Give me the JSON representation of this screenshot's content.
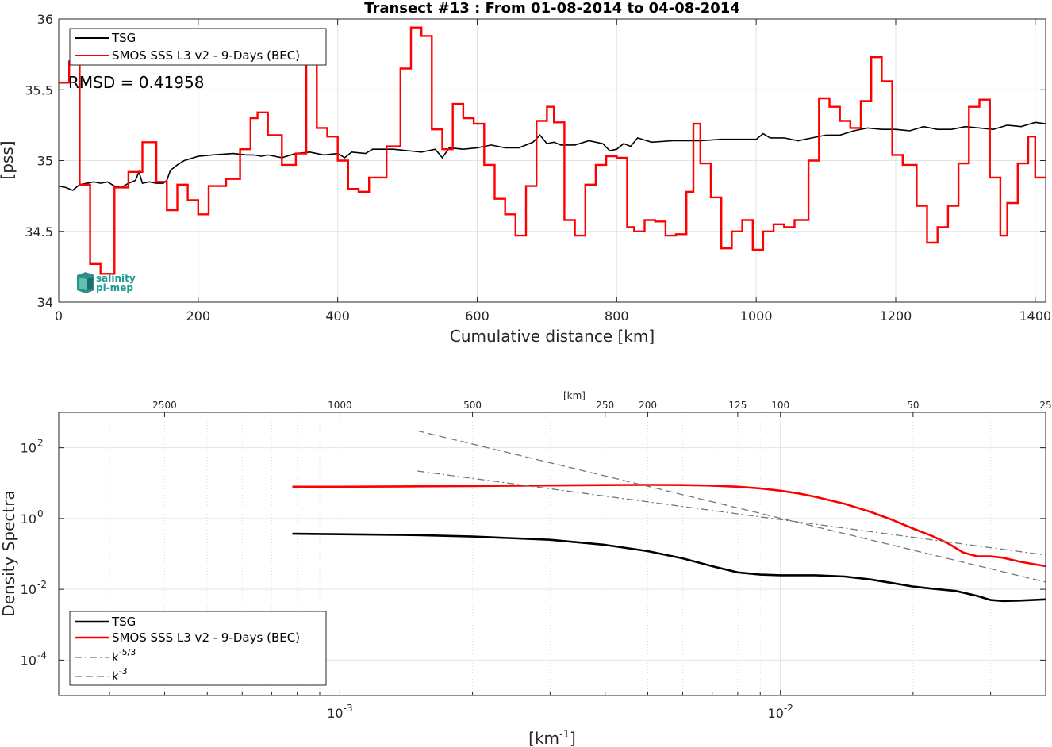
{
  "chart_data": [
    {
      "type": "line",
      "title": "Transect #13 : From 01-08-2014 to 04-08-2014",
      "xlabel": "Cumulative distance [km]",
      "ylabel": "[pss]",
      "xlim": [
        0,
        1415
      ],
      "ylim": [
        34,
        36
      ],
      "xticks": [
        0,
        200,
        400,
        600,
        800,
        1000,
        1200,
        1400
      ],
      "yticks": [
        34,
        34.5,
        35,
        35.5,
        36
      ],
      "xtick_labels": [
        "0",
        "200",
        "400",
        "600",
        "800",
        "1000",
        "1200",
        "1400"
      ],
      "ytick_labels": [
        "34",
        "34.5",
        "35",
        "35.5",
        "36"
      ],
      "grid": true,
      "legend_position": "top-left",
      "annotation": "RMSD = 0.41958",
      "logo": {
        "line1": "salinity",
        "line2": "pi-mep"
      },
      "series": [
        {
          "name": "TSG",
          "color": "#000000",
          "step": false,
          "x": [
            0,
            10,
            20,
            30,
            40,
            50,
            60,
            70,
            80,
            90,
            100,
            110,
            115,
            120,
            130,
            140,
            150,
            155,
            160,
            170,
            180,
            200,
            220,
            250,
            270,
            280,
            290,
            300,
            320,
            340,
            360,
            380,
            400,
            410,
            420,
            440,
            450,
            480,
            500,
            520,
            540,
            550,
            560,
            580,
            600,
            620,
            640,
            660,
            680,
            690,
            700,
            710,
            720,
            740,
            760,
            780,
            790,
            800,
            810,
            820,
            830,
            850,
            880,
            900,
            920,
            950,
            980,
            1000,
            1010,
            1020,
            1040,
            1060,
            1080,
            1100,
            1120,
            1140,
            1160,
            1180,
            1200,
            1220,
            1240,
            1260,
            1280,
            1300,
            1320,
            1340,
            1360,
            1380,
            1400,
            1415
          ],
          "values": [
            34.82,
            34.81,
            34.79,
            34.83,
            34.84,
            34.85,
            34.84,
            34.85,
            34.82,
            34.81,
            34.84,
            34.86,
            34.92,
            34.84,
            34.85,
            34.84,
            34.84,
            34.86,
            34.93,
            34.97,
            35.0,
            35.03,
            35.04,
            35.05,
            35.04,
            35.04,
            35.03,
            35.04,
            35.02,
            35.05,
            35.06,
            35.04,
            35.05,
            35.02,
            35.06,
            35.05,
            35.08,
            35.08,
            35.07,
            35.06,
            35.08,
            35.02,
            35.09,
            35.08,
            35.09,
            35.11,
            35.09,
            35.09,
            35.13,
            35.18,
            35.12,
            35.13,
            35.11,
            35.11,
            35.14,
            35.12,
            35.07,
            35.08,
            35.12,
            35.1,
            35.16,
            35.13,
            35.14,
            35.14,
            35.14,
            35.15,
            35.15,
            35.15,
            35.19,
            35.16,
            35.16,
            35.14,
            35.16,
            35.18,
            35.18,
            35.21,
            35.23,
            35.22,
            35.22,
            35.21,
            35.24,
            35.22,
            35.22,
            35.24,
            35.23,
            35.22,
            35.25,
            35.24,
            35.27,
            35.26
          ]
        },
        {
          "name": "SMOS SSS L3 v2 - 9-Days (BEC)",
          "color": "#ff0000",
          "step": true,
          "x": [
            0,
            15,
            30,
            45,
            60,
            80,
            100,
            120,
            140,
            155,
            170,
            185,
            200,
            215,
            240,
            260,
            275,
            285,
            300,
            320,
            340,
            355,
            370,
            385,
            400,
            415,
            430,
            445,
            470,
            490,
            505,
            520,
            535,
            550,
            565,
            580,
            595,
            610,
            625,
            640,
            655,
            670,
            685,
            700,
            710,
            725,
            740,
            755,
            770,
            785,
            800,
            815,
            825,
            840,
            855,
            870,
            885,
            900,
            910,
            920,
            935,
            950,
            965,
            980,
            995,
            1010,
            1025,
            1040,
            1055,
            1075,
            1090,
            1105,
            1120,
            1135,
            1150,
            1165,
            1180,
            1195,
            1210,
            1230,
            1245,
            1260,
            1275,
            1290,
            1305,
            1320,
            1335,
            1350,
            1360,
            1375,
            1390,
            1400,
            1415
          ],
          "values": [
            35.55,
            35.7,
            34.83,
            34.27,
            34.2,
            34.81,
            34.92,
            35.13,
            34.85,
            34.65,
            34.83,
            34.72,
            34.62,
            34.82,
            34.87,
            35.08,
            35.3,
            35.34,
            35.18,
            34.97,
            35.05,
            35.72,
            35.23,
            35.17,
            35.0,
            34.8,
            34.78,
            34.88,
            35.1,
            35.65,
            35.94,
            35.88,
            35.22,
            35.08,
            35.4,
            35.3,
            35.26,
            34.97,
            34.73,
            34.62,
            34.47,
            34.82,
            35.28,
            35.38,
            35.27,
            34.58,
            34.47,
            34.83,
            34.97,
            35.03,
            35.02,
            34.53,
            34.5,
            34.58,
            34.57,
            34.47,
            34.48,
            34.78,
            35.26,
            34.98,
            34.74,
            34.38,
            34.5,
            34.58,
            34.37,
            34.5,
            34.55,
            34.53,
            34.58,
            35.0,
            35.44,
            35.38,
            35.28,
            35.23,
            35.42,
            35.73,
            35.56,
            35.04,
            34.97,
            34.68,
            34.42,
            34.53,
            34.68,
            34.98,
            35.38,
            35.43,
            34.88,
            34.47,
            34.7,
            34.98,
            35.17,
            34.88,
            34.88
          ]
        }
      ]
    },
    {
      "type": "line",
      "title": "",
      "xlabel": "[km⁻¹]",
      "ylabel": "Density Spectra",
      "xscale": "log",
      "yscale": "log",
      "xlim": [
        0.00023,
        0.04
      ],
      "ylim": [
        1e-05,
        1000
      ],
      "xtick_values": [
        0.001,
        0.01
      ],
      "xtick_labels": [
        {
          "base": "10",
          "exp": "-3"
        },
        {
          "base": "10",
          "exp": "-2"
        }
      ],
      "ytick_values": [
        0.0001,
        0.01,
        1,
        100
      ],
      "ytick_labels": [
        {
          "base": "10",
          "exp": "-4"
        },
        {
          "base": "10",
          "exp": "-2"
        },
        {
          "base": "10",
          "exp": "0"
        },
        {
          "base": "10",
          "exp": "2"
        }
      ],
      "top_axis_label": "[km]",
      "top_axis_values": [
        2500,
        1000,
        500,
        250,
        200,
        125,
        100,
        50,
        25
      ],
      "top_axis_labels": [
        "2500",
        "1000",
        "500",
        "250",
        "200",
        "125",
        "100",
        "50",
        "25"
      ],
      "grid": true,
      "legend_position": "bottom-left",
      "series": [
        {
          "name": "TSG",
          "color": "#000000",
          "style": "solid",
          "x": [
            0.00078,
            0.001,
            0.0015,
            0.002,
            0.003,
            0.004,
            0.005,
            0.006,
            0.007,
            0.008,
            0.009,
            0.01,
            0.011,
            0.012,
            0.014,
            0.016,
            0.018,
            0.02,
            0.022,
            0.025,
            0.028,
            0.03,
            0.032,
            0.035,
            0.04
          ],
          "values": [
            0.37,
            0.36,
            0.34,
            0.31,
            0.25,
            0.18,
            0.12,
            0.075,
            0.045,
            0.03,
            0.026,
            0.025,
            0.025,
            0.025,
            0.023,
            0.019,
            0.015,
            0.012,
            0.0105,
            0.009,
            0.0065,
            0.005,
            0.0047,
            0.0048,
            0.0052
          ]
        },
        {
          "name": "SMOS SSS L3 v2 - 9-Days (BEC)",
          "color": "#ff0000",
          "style": "solid",
          "x": [
            0.00078,
            0.001,
            0.0015,
            0.002,
            0.003,
            0.004,
            0.005,
            0.006,
            0.007,
            0.008,
            0.009,
            0.01,
            0.011,
            0.012,
            0.014,
            0.016,
            0.018,
            0.02,
            0.022,
            0.024,
            0.026,
            0.028,
            0.03,
            0.032,
            0.035,
            0.04
          ],
          "values": [
            7.9,
            7.9,
            8.1,
            8.3,
            8.6,
            8.8,
            8.9,
            8.8,
            8.5,
            7.9,
            7.1,
            6.1,
            5.1,
            4.1,
            2.6,
            1.55,
            0.9,
            0.52,
            0.33,
            0.2,
            0.11,
            0.085,
            0.085,
            0.078,
            0.06,
            0.045
          ]
        },
        {
          "name": "k⁻⁵ᐟ³",
          "color": "#777777",
          "style": "dashdot",
          "x": [
            0.0015,
            0.04
          ],
          "values": [
            22,
            0.093
          ]
        },
        {
          "name": "k⁻³",
          "color": "#777777",
          "style": "dashed",
          "x": [
            0.0015,
            0.04
          ],
          "values": [
            300,
            0.016
          ]
        }
      ]
    }
  ],
  "legend2_labels": [
    {
      "base": "TSG",
      "exp": ""
    },
    {
      "base": "SMOS SSS L3 v2 - 9-Days (BEC)",
      "exp": ""
    },
    {
      "base": "k",
      "exp": "-5/3"
    },
    {
      "base": "k",
      "exp": "-3"
    }
  ]
}
